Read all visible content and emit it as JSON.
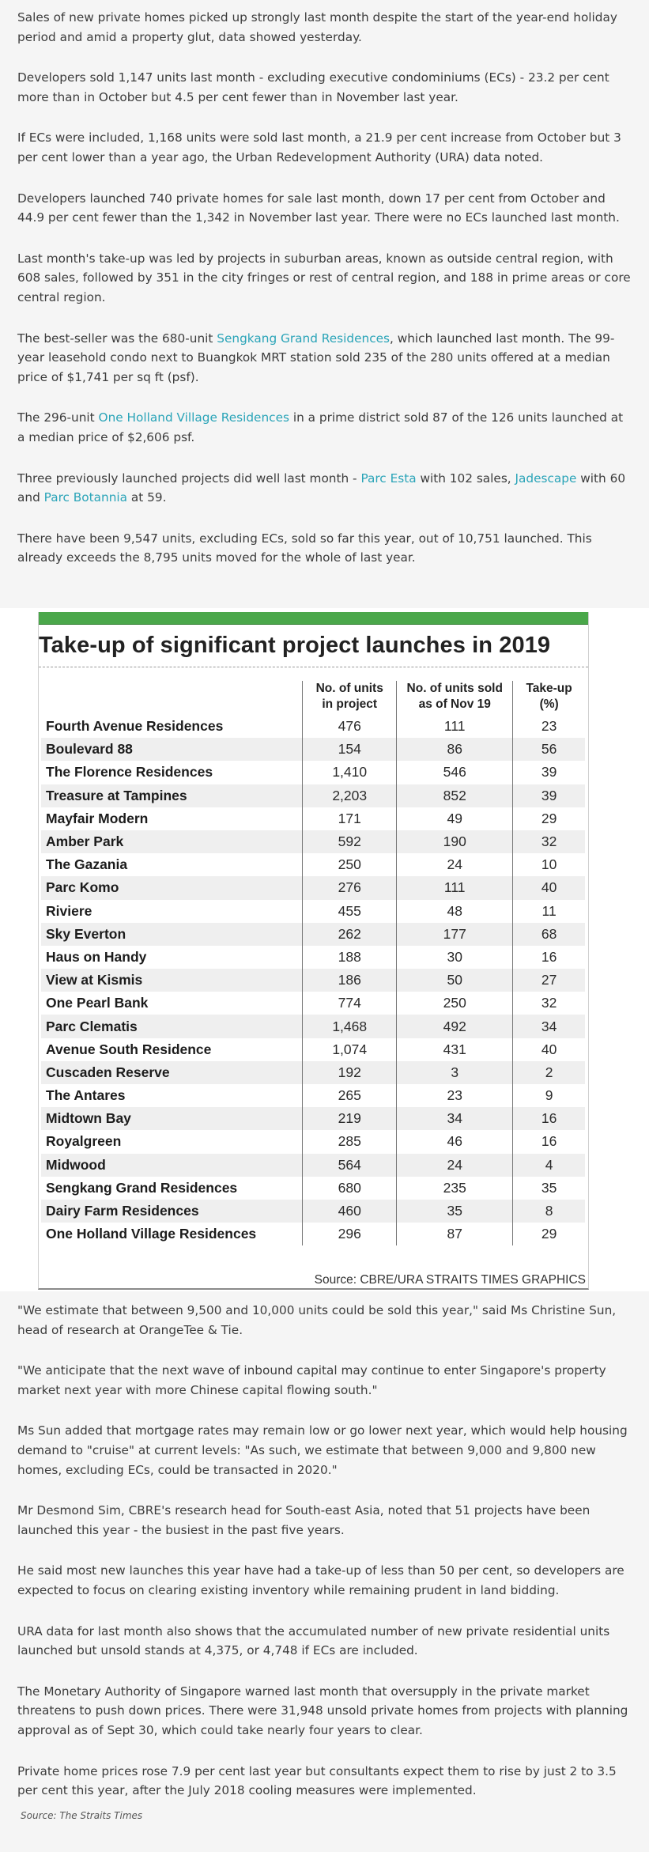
{
  "article": {
    "intro": [
      {
        "parts": [
          {
            "text": "Sales of new private homes picked up strongly last month despite the start of the year-end holiday period and amid a property glut, data showed yesterday."
          }
        ]
      },
      {
        "parts": [
          {
            "text": "Developers sold 1,147 units last month - excluding executive condominiums (ECs) - 23.2 per cent more than in October but 4.5 per cent fewer than in November last year."
          }
        ]
      },
      {
        "parts": [
          {
            "text": "If ECs were included, 1,168 units were sold last month, a 21.9 per cent increase from October but 3 per cent lower than a year ago, the Urban Redevelopment Authority (URA) data noted."
          }
        ]
      },
      {
        "parts": [
          {
            "text": "Developers launched 740 private homes for sale last month, down 17 per cent from October and 44.9 per cent fewer than the 1,342 in November last year. There were no ECs launched last month."
          }
        ]
      },
      {
        "parts": [
          {
            "text": "Last month's take-up was led by projects in suburban areas, known as outside central region, with 608 sales, followed by 351 in the city fringes or rest of central region, and 188 in prime areas or core central region."
          }
        ]
      },
      {
        "parts": [
          {
            "text": "The best-seller was the 680-unit "
          },
          {
            "text": "Sengkang Grand Residences",
            "link": true
          },
          {
            "text": ", which launched last month. The 99-year leasehold condo next to Buangkok MRT station sold 235 of the 280 units offered at a median price of $1,741 per sq ft (psf)."
          }
        ]
      },
      {
        "parts": [
          {
            "text": "The 296-unit "
          },
          {
            "text": "One Holland Village Residences",
            "link": true
          },
          {
            "text": " in a prime district sold 87 of the 126 units launched at a median price of $2,606 psf."
          }
        ]
      },
      {
        "parts": [
          {
            "text": "Three previously launched projects did well last month - "
          },
          {
            "text": "Parc Esta",
            "link": true
          },
          {
            "text": " with 102 sales, "
          },
          {
            "text": "Jadescape",
            "link": true
          },
          {
            "text": " with 60 and "
          },
          {
            "text": "Parc Botannia",
            "link": true
          },
          {
            "text": " at 59."
          }
        ]
      },
      {
        "parts": [
          {
            "text": "There have been 9,547 units, excluding ECs, sold so far this year, out of 10,751 launched. This already exceeds the 8,795 units moved for the whole of last year."
          }
        ]
      }
    ],
    "outro": [
      "\"We estimate that between 9,500 and 10,000 units could be sold this year,\" said Ms Christine Sun, head of research at OrangeTee & Tie.",
      "\"We anticipate that the next wave of inbound capital may continue to enter Singapore's property market next year with more Chinese capital flowing south.\"",
      "Ms Sun added that mortgage rates may remain low or go lower next year, which would help housing demand to \"cruise\" at current levels: \"As such, we estimate that between 9,000 and 9,800 new homes, excluding ECs, could be transacted in 2020.\"",
      "Mr Desmond Sim, CBRE's research head for South-east Asia, noted that 51 projects have been launched this year - the busiest in the past five years.",
      "He said most new launches this year have had a take-up of less than 50 per cent, so developers are expected to focus on clearing existing inventory while remaining prudent in land bidding.",
      "URA data for last month also shows that the accumulated number of new private residential units launched but unsold stands at 4,375, or 4,748 if ECs are included.",
      "The Monetary Authority of Singapore warned last month that oversupply in the private market threatens to push down prices. There were 31,948 unsold private homes from projects with planning approval as of Sept 30, which could take nearly four years to clear.",
      "Private home prices rose 7.9 per cent last year but consultants expect them to rise by just 2 to 3.5 per cent this year, after the July 2018 cooling measures were implemented."
    ],
    "credit": "Source: The Straits Times",
    "link_color": "#2aa4b8"
  },
  "table": {
    "title": "Take-up of significant project launches in 2019",
    "headers": [
      "",
      "No. of units\nin project",
      "No. of units sold\nas of Nov 19",
      "Take-up\n(%)"
    ],
    "rows": [
      [
        "Fourth Avenue Residences",
        "476",
        "111",
        "23"
      ],
      [
        "Boulevard 88",
        "154",
        "86",
        "56"
      ],
      [
        "The Florence Residences",
        "1,410",
        "546",
        "39"
      ],
      [
        "Treasure at Tampines",
        "2,203",
        "852",
        "39"
      ],
      [
        "Mayfair Modern",
        "171",
        "49",
        "29"
      ],
      [
        "Amber Park",
        "592",
        "190",
        "32"
      ],
      [
        "The Gazania",
        "250",
        "24",
        "10"
      ],
      [
        "Parc Komo",
        "276",
        "111",
        "40"
      ],
      [
        "Riviere",
        "455",
        "48",
        "11"
      ],
      [
        "Sky Everton",
        "262",
        "177",
        "68"
      ],
      [
        "Haus on Handy",
        "188",
        "30",
        "16"
      ],
      [
        "View at Kismis",
        "186",
        "50",
        "27"
      ],
      [
        "One Pearl Bank",
        "774",
        "250",
        "32"
      ],
      [
        "Parc Clematis",
        "1,468",
        "492",
        "34"
      ],
      [
        "Avenue South Residence",
        "1,074",
        "431",
        "40"
      ],
      [
        "Cuscaden Reserve",
        "192",
        "3",
        "2"
      ],
      [
        "The Antares",
        "265",
        "23",
        "9"
      ],
      [
        "Midtown Bay",
        "219",
        "34",
        "16"
      ],
      [
        "Royalgreen",
        "285",
        "46",
        "16"
      ],
      [
        "Midwood",
        "564",
        "24",
        "4"
      ],
      [
        "Sengkang Grand Residences",
        "680",
        "235",
        "35"
      ],
      [
        "Dairy Farm Residences",
        "460",
        "35",
        "8"
      ],
      [
        "One Holland Village Residences",
        "296",
        "87",
        "29"
      ]
    ],
    "source": "Source: CBRE/URA   STRAITS TIMES GRAPHICS",
    "accent_color": "#4aa74a"
  }
}
